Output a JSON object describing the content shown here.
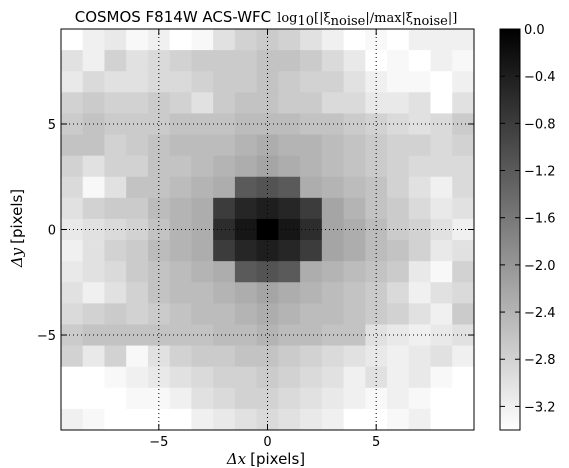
{
  "chart_data": {
    "type": "heatmap",
    "title_text": "COSMOS F814W ACS-WFC",
    "title_math": {
      "log": "log",
      "log_sub": "10",
      "open": "[|ξ",
      "sub1": "noise",
      "mid": "|/max|ξ",
      "sub2": "noise",
      "close": "|]"
    },
    "xlabel": {
      "symbol": "Δx",
      "unit": "[pixels]"
    },
    "ylabel": {
      "symbol": "Δy",
      "unit": "[pixels]"
    },
    "xlim": [
      -9.5,
      9.5
    ],
    "ylim": [
      -9.5,
      9.5
    ],
    "xticks": [
      -5,
      0,
      5
    ],
    "xtick_labels": [
      "−5",
      "0",
      "5"
    ],
    "yticks": [
      5,
      0,
      -5
    ],
    "ytick_labels": [
      "5",
      "0",
      "−5"
    ],
    "grid": "dotted at ±5 and 0",
    "colormap": "gray_r",
    "vmin": -3.4,
    "vmax": 0.0,
    "colorbar_ticks": [
      0.0,
      -0.4,
      -0.8,
      -1.2,
      -1.6,
      -2.0,
      -2.4,
      -2.8,
      -3.2
    ],
    "colorbar_tick_labels": [
      "0.0",
      "−0.4",
      "−0.8",
      "−1.2",
      "−1.6",
      "−2.0",
      "−2.4",
      "−2.8",
      "−3.2"
    ],
    "x_centers": [
      -9,
      -8,
      -7,
      -6,
      -5,
      -4,
      -3,
      -2,
      -1,
      0,
      1,
      2,
      3,
      4,
      5,
      6,
      7,
      8,
      9
    ],
    "y_centers": [
      9,
      8,
      7,
      6,
      5,
      4,
      3,
      2,
      1,
      0,
      -1,
      -2,
      -3,
      -4,
      -5,
      -6,
      -7,
      -8,
      -9
    ],
    "values": [
      [
        -3.4,
        -3.2,
        -3.1,
        -3.3,
        -3.2,
        -3.4,
        -3.3,
        -3.0,
        -2.8,
        -2.7,
        -2.8,
        -3.0,
        -3.2,
        -3.4,
        -3.3,
        -3.4,
        -3.2,
        -3.2,
        -3.2
      ],
      [
        -3.0,
        -3.2,
        -2.8,
        -3.0,
        -2.9,
        -2.8,
        -2.7,
        -2.7,
        -2.7,
        -2.6,
        -2.6,
        -2.7,
        -2.9,
        -3.1,
        -3.4,
        -3.3,
        -3.4,
        -3.2,
        -3.3
      ],
      [
        -3.1,
        -2.9,
        -3.0,
        -3.0,
        -2.9,
        -2.9,
        -2.8,
        -2.7,
        -2.7,
        -2.6,
        -2.7,
        -2.8,
        -2.8,
        -3.0,
        -3.2,
        -3.3,
        -3.3,
        -3.4,
        -3.2
      ],
      [
        -2.8,
        -2.7,
        -2.8,
        -2.8,
        -2.7,
        -2.8,
        -3.0,
        -2.7,
        -2.6,
        -2.6,
        -2.7,
        -2.7,
        -2.9,
        -2.9,
        -3.1,
        -3.1,
        -3.0,
        -3.4,
        -3.0
      ],
      [
        -2.7,
        -2.6,
        -2.7,
        -2.7,
        -2.7,
        -2.6,
        -2.6,
        -2.6,
        -2.5,
        -2.5,
        -2.5,
        -2.6,
        -2.6,
        -2.7,
        -2.8,
        -2.9,
        -3.0,
        -2.9,
        -2.7
      ],
      [
        -2.6,
        -2.6,
        -2.8,
        -2.7,
        -2.6,
        -2.5,
        -2.5,
        -2.5,
        -2.4,
        -2.3,
        -2.4,
        -2.4,
        -2.5,
        -2.6,
        -2.7,
        -2.8,
        -2.8,
        -2.9,
        -2.8
      ],
      [
        -2.8,
        -3.0,
        -2.8,
        -2.8,
        -2.6,
        -2.6,
        -2.5,
        -2.4,
        -2.3,
        -2.2,
        -2.3,
        -2.4,
        -2.5,
        -2.6,
        -2.7,
        -2.8,
        -2.9,
        -2.9,
        -2.9
      ],
      [
        -2.9,
        -3.3,
        -3.0,
        -2.6,
        -2.6,
        -2.5,
        -2.4,
        -2.3,
        -1.2,
        -1.1,
        -1.2,
        -2.3,
        -2.4,
        -2.5,
        -2.6,
        -2.8,
        -3.0,
        -3.2,
        -2.9
      ],
      [
        -3.0,
        -2.8,
        -2.7,
        -2.7,
        -2.5,
        -2.4,
        -2.3,
        -0.8,
        -0.5,
        -0.4,
        -0.5,
        -0.8,
        -2.2,
        -2.4,
        -2.6,
        -2.7,
        -2.9,
        -3.1,
        -3.0
      ],
      [
        -3.1,
        -3.0,
        -2.9,
        -2.8,
        -2.6,
        -2.4,
        -2.3,
        -0.6,
        -0.3,
        0.0,
        -0.3,
        -0.6,
        -2.2,
        -2.3,
        -2.5,
        -2.7,
        -2.8,
        -3.0,
        -3.2
      ],
      [
        -3.2,
        -3.0,
        -2.8,
        -2.7,
        -2.5,
        -2.4,
        -2.3,
        -0.8,
        -0.5,
        -0.4,
        -0.5,
        -0.8,
        -2.2,
        -2.3,
        -2.5,
        -2.6,
        -2.8,
        -3.1,
        -3.0
      ],
      [
        -3.1,
        -3.0,
        -2.9,
        -2.7,
        -2.6,
        -2.5,
        -2.4,
        -2.3,
        -1.2,
        -1.1,
        -1.2,
        -2.3,
        -2.4,
        -2.5,
        -2.6,
        -2.7,
        -3.1,
        -3.3,
        -2.8
      ],
      [
        -3.0,
        -3.2,
        -3.0,
        -2.8,
        -2.6,
        -2.5,
        -2.5,
        -2.4,
        -2.3,
        -2.2,
        -2.3,
        -2.4,
        -2.5,
        -2.6,
        -2.7,
        -2.9,
        -3.2,
        -3.0,
        -2.9
      ],
      [
        -2.9,
        -2.8,
        -2.7,
        -2.8,
        -2.7,
        -2.6,
        -2.5,
        -2.5,
        -2.4,
        -2.3,
        -2.4,
        -2.5,
        -2.5,
        -2.6,
        -2.7,
        -2.8,
        -3.0,
        -3.2,
        -2.7
      ],
      [
        -2.7,
        -2.6,
        -2.6,
        -2.6,
        -2.6,
        -2.6,
        -2.6,
        -2.5,
        -2.5,
        -2.4,
        -2.5,
        -2.5,
        -2.6,
        -2.6,
        -3.0,
        -3.1,
        -3.2,
        -3.1,
        -3.0
      ],
      [
        -2.8,
        -3.1,
        -2.8,
        -3.3,
        -3.0,
        -2.8,
        -2.7,
        -2.7,
        -2.6,
        -2.6,
        -2.7,
        -2.8,
        -2.9,
        -3.0,
        -3.1,
        -3.2,
        -3.1,
        -3.0,
        -3.2
      ],
      [
        -3.4,
        -3.4,
        -3.3,
        -3.2,
        -3.1,
        -3.0,
        -2.9,
        -2.8,
        -2.8,
        -2.7,
        -2.8,
        -2.9,
        -3.0,
        -3.2,
        -3.0,
        -3.2,
        -3.1,
        -3.3,
        -3.4
      ],
      [
        -3.4,
        -3.4,
        -3.4,
        -3.3,
        -3.3,
        -3.2,
        -3.0,
        -2.9,
        -2.8,
        -2.8,
        -2.9,
        -3.0,
        -3.1,
        -3.2,
        -3.3,
        -3.2,
        -3.3,
        -3.4,
        -3.4
      ],
      [
        -3.2,
        -3.3,
        -3.4,
        -3.4,
        -3.4,
        -3.4,
        -3.2,
        -3.1,
        -3.0,
        -2.9,
        -3.0,
        -3.1,
        -3.2,
        -3.4,
        -3.4,
        -3.3,
        -3.2,
        -3.4,
        -3.4
      ]
    ]
  }
}
